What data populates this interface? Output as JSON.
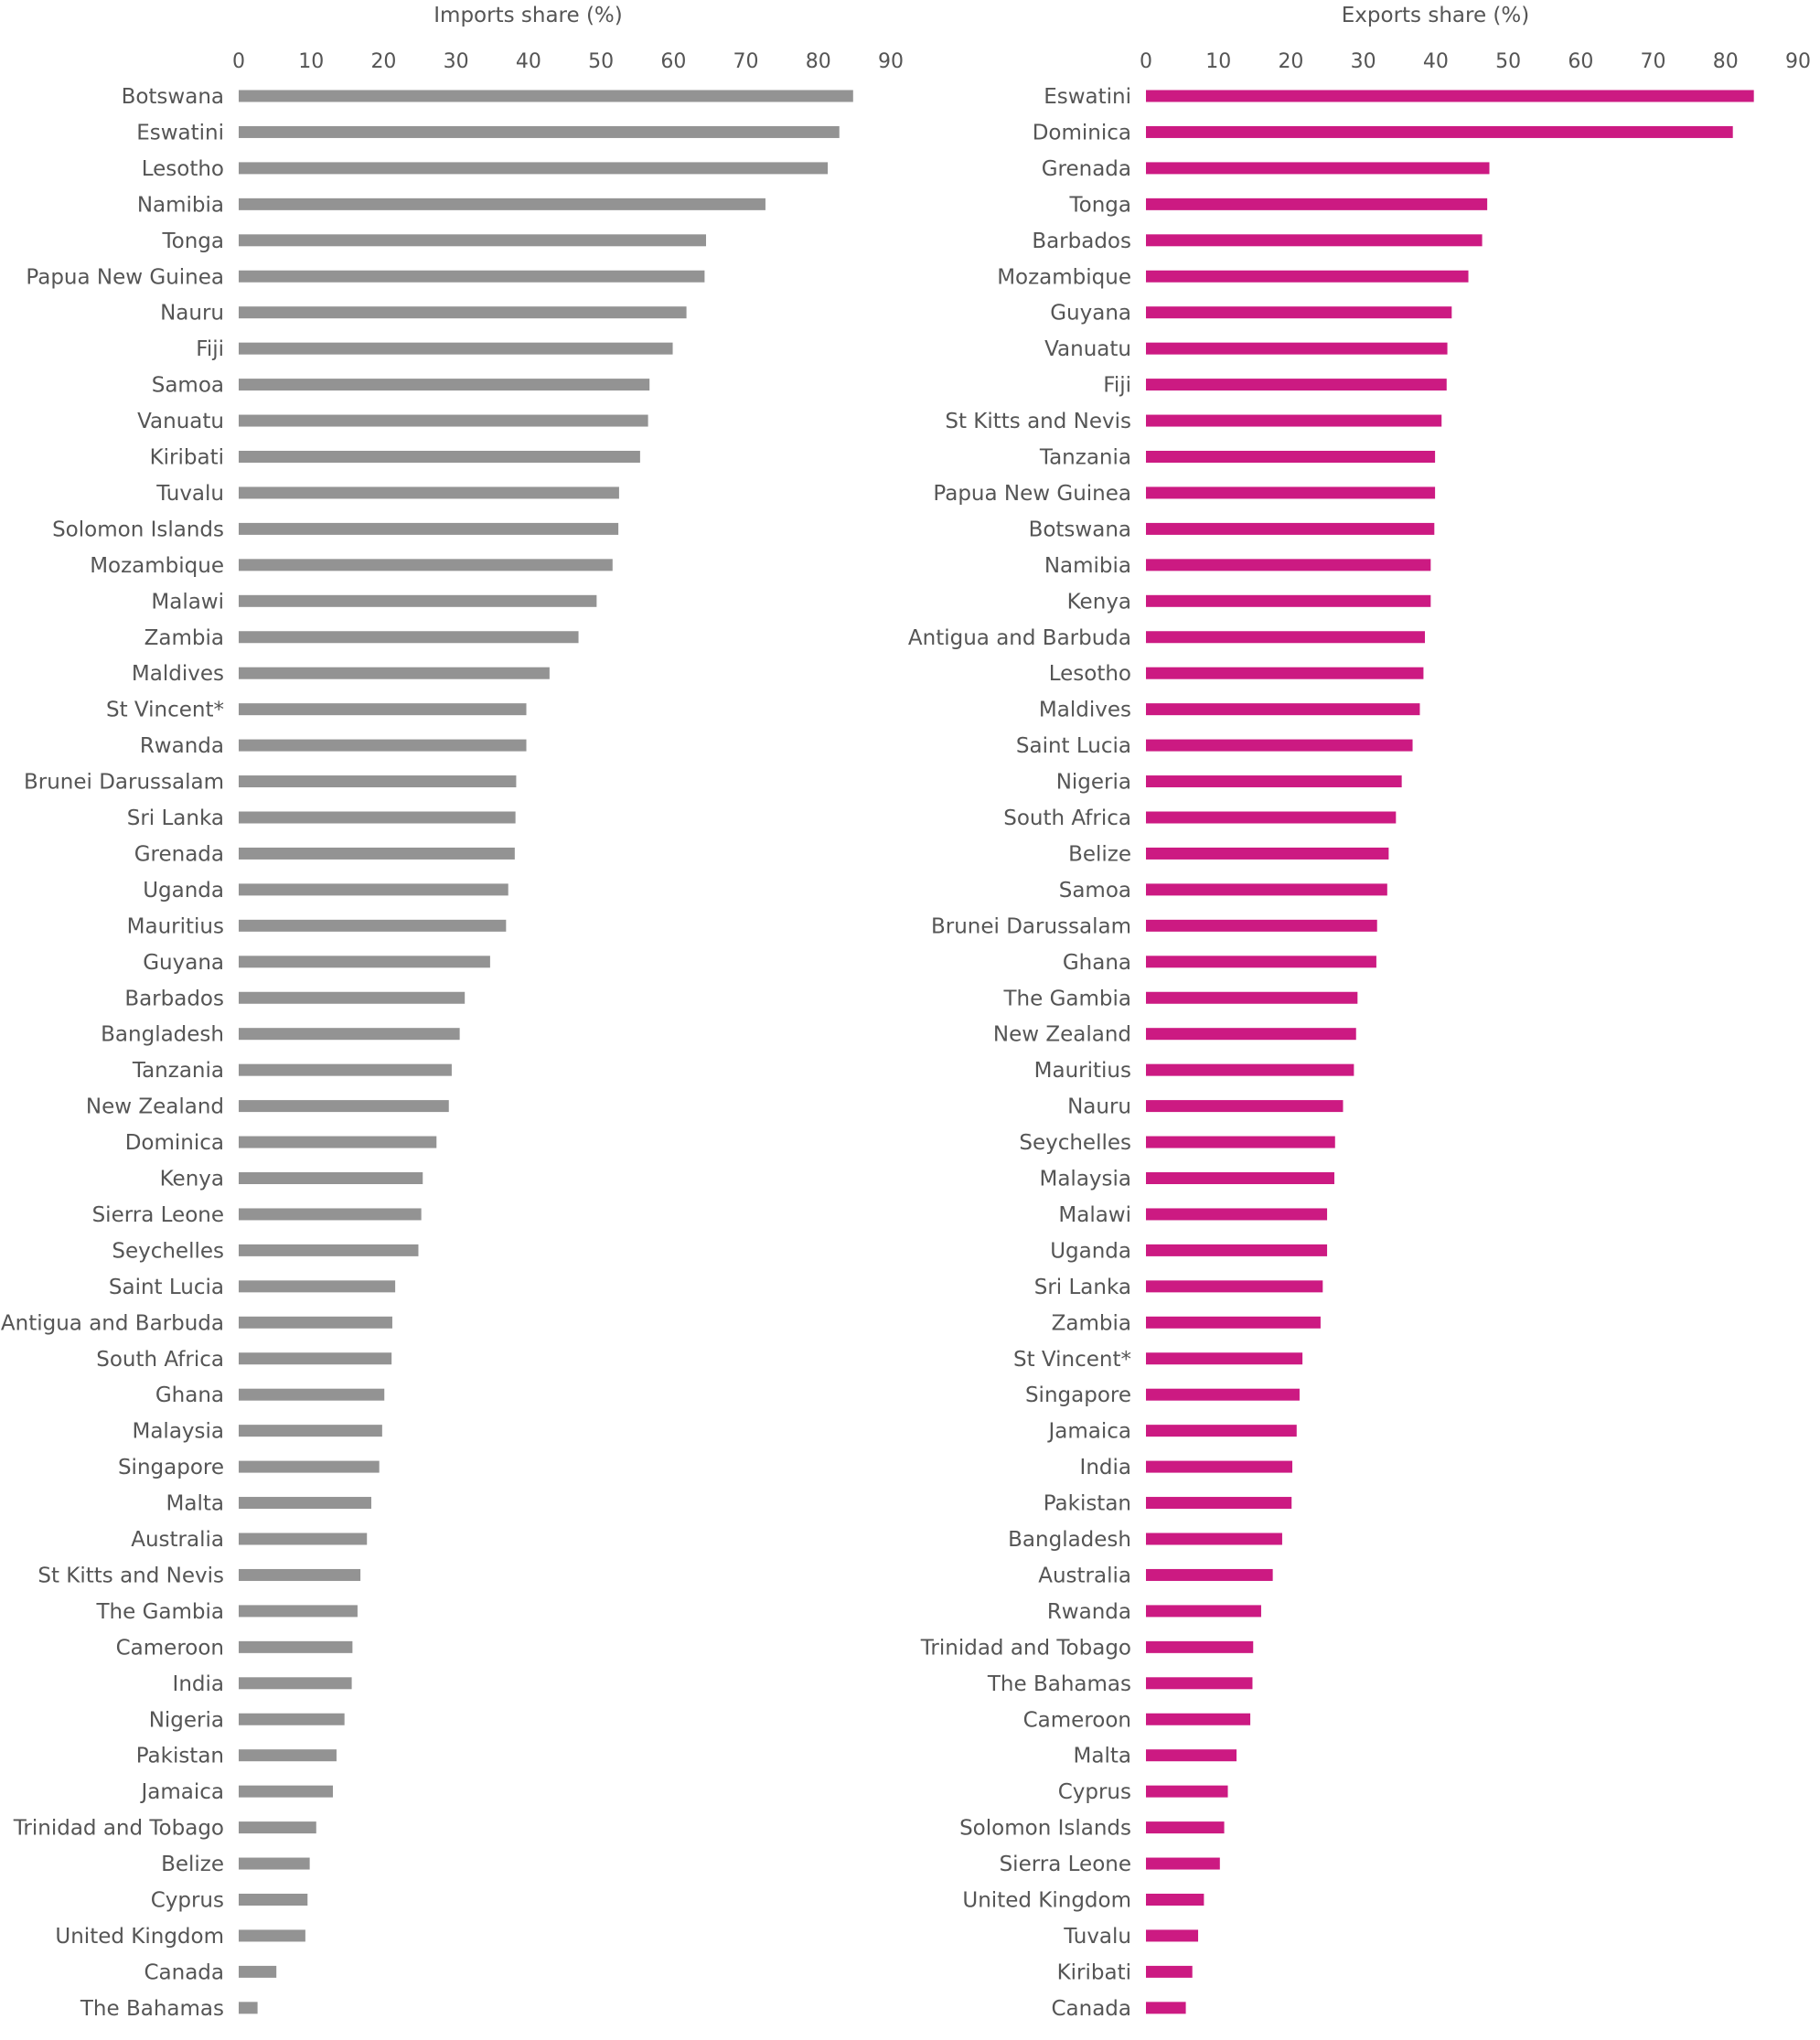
{
  "chart_data": [
    {
      "type": "bar",
      "orientation": "horizontal",
      "title": "",
      "xlabel": "Imports share (%)",
      "ylabel": "",
      "xlim": [
        0,
        90
      ],
      "xticks": [
        0,
        10,
        20,
        30,
        40,
        50,
        60,
        70,
        80,
        90
      ],
      "grid": false,
      "axis_position": "top",
      "color": "#939393",
      "categories": [
        "Botswana",
        "Eswatini",
        "Lesotho",
        "Namibia",
        "Tonga",
        "Papua New Guinea",
        "Nauru",
        "Fiji",
        "Samoa",
        "Vanuatu",
        "Kiribati",
        "Tuvalu",
        "Solomon Islands",
        "Mozambique",
        "Malawi",
        "Zambia",
        "Maldives",
        "St Vincent*",
        "Rwanda",
        "Brunei Darussalam",
        "Sri Lanka",
        "Grenada",
        "Uganda",
        "Mauritius",
        "Guyana",
        "Barbados",
        "Bangladesh",
        "Tanzania",
        "New Zealand",
        "Dominica",
        "Kenya",
        "Sierra Leone",
        "Seychelles",
        "Saint Lucia",
        "Antigua and Barbuda",
        "South Africa",
        "Ghana",
        "Malaysia",
        "Singapore",
        "Malta",
        "Australia",
        "St Kitts and Nevis",
        "The Gambia",
        "Cameroon",
        "India",
        "Nigeria",
        "Pakistan",
        "Jamaica",
        "Trinidad and Tobago",
        "Belize",
        "Cyprus",
        "United Kingdom",
        "Canada",
        "The Bahamas"
      ],
      "values": [
        84.8,
        82.9,
        81.3,
        72.7,
        64.5,
        64.3,
        61.8,
        59.9,
        56.7,
        56.5,
        55.4,
        52.5,
        52.4,
        51.6,
        49.4,
        46.9,
        42.9,
        39.7,
        39.7,
        38.3,
        38.2,
        38.1,
        37.2,
        36.9,
        34.7,
        31.2,
        30.5,
        29.4,
        29.0,
        27.3,
        25.4,
        25.2,
        24.8,
        21.6,
        21.2,
        21.1,
        20.1,
        19.8,
        19.4,
        18.3,
        17.7,
        16.8,
        16.4,
        15.7,
        15.6,
        14.6,
        13.5,
        13.0,
        10.7,
        9.8,
        9.5,
        9.2,
        5.2,
        2.6
      ]
    },
    {
      "type": "bar",
      "orientation": "horizontal",
      "title": "",
      "xlabel": "Exports share (%)",
      "ylabel": "",
      "xlim": [
        0,
        90
      ],
      "xticks": [
        0,
        10,
        20,
        30,
        40,
        50,
        60,
        70,
        80,
        90
      ],
      "grid": false,
      "axis_position": "top",
      "color": "#cc1a82",
      "categories": [
        "Eswatini",
        "Dominica",
        "Grenada",
        "Tonga",
        "Barbados",
        "Mozambique",
        "Guyana",
        "Vanuatu",
        "Fiji",
        "St Kitts and Nevis",
        "Tanzania",
        "Papua New Guinea",
        "Botswana",
        "Namibia",
        "Kenya",
        "Antigua and Barbuda",
        "Lesotho",
        "Maldives",
        "Saint Lucia",
        "Nigeria",
        "South Africa",
        "Belize",
        "Samoa",
        "Brunei Darussalam",
        "Ghana",
        "The Gambia",
        "New Zealand",
        "Mauritius",
        "Nauru",
        "Seychelles",
        "Malaysia",
        "Malawi",
        "Uganda",
        "Sri Lanka",
        "Zambia",
        "St Vincent*",
        "Singapore",
        "Jamaica",
        "India",
        "Pakistan",
        "Bangladesh",
        "Australia",
        "Rwanda",
        "Trinidad and Tobago",
        "The Bahamas",
        "Cameroon",
        "Malta",
        "Cyprus",
        "Solomon Islands",
        "Sierra Leone",
        "United Kingdom",
        "Tuvalu",
        "Kiribati",
        "Canada"
      ],
      "values": [
        83.9,
        81.0,
        47.4,
        47.1,
        46.4,
        44.5,
        42.2,
        41.6,
        41.5,
        40.8,
        39.9,
        39.9,
        39.8,
        39.3,
        39.3,
        38.5,
        38.3,
        37.8,
        36.8,
        35.3,
        34.5,
        33.5,
        33.3,
        31.9,
        31.8,
        29.2,
        29.0,
        28.7,
        27.2,
        26.1,
        26.0,
        25.0,
        25.0,
        24.4,
        24.1,
        21.6,
        21.2,
        20.8,
        20.2,
        20.1,
        18.8,
        17.5,
        15.9,
        14.8,
        14.7,
        14.4,
        12.5,
        11.3,
        10.8,
        10.2,
        8.0,
        7.2,
        6.4,
        5.5
      ]
    }
  ]
}
